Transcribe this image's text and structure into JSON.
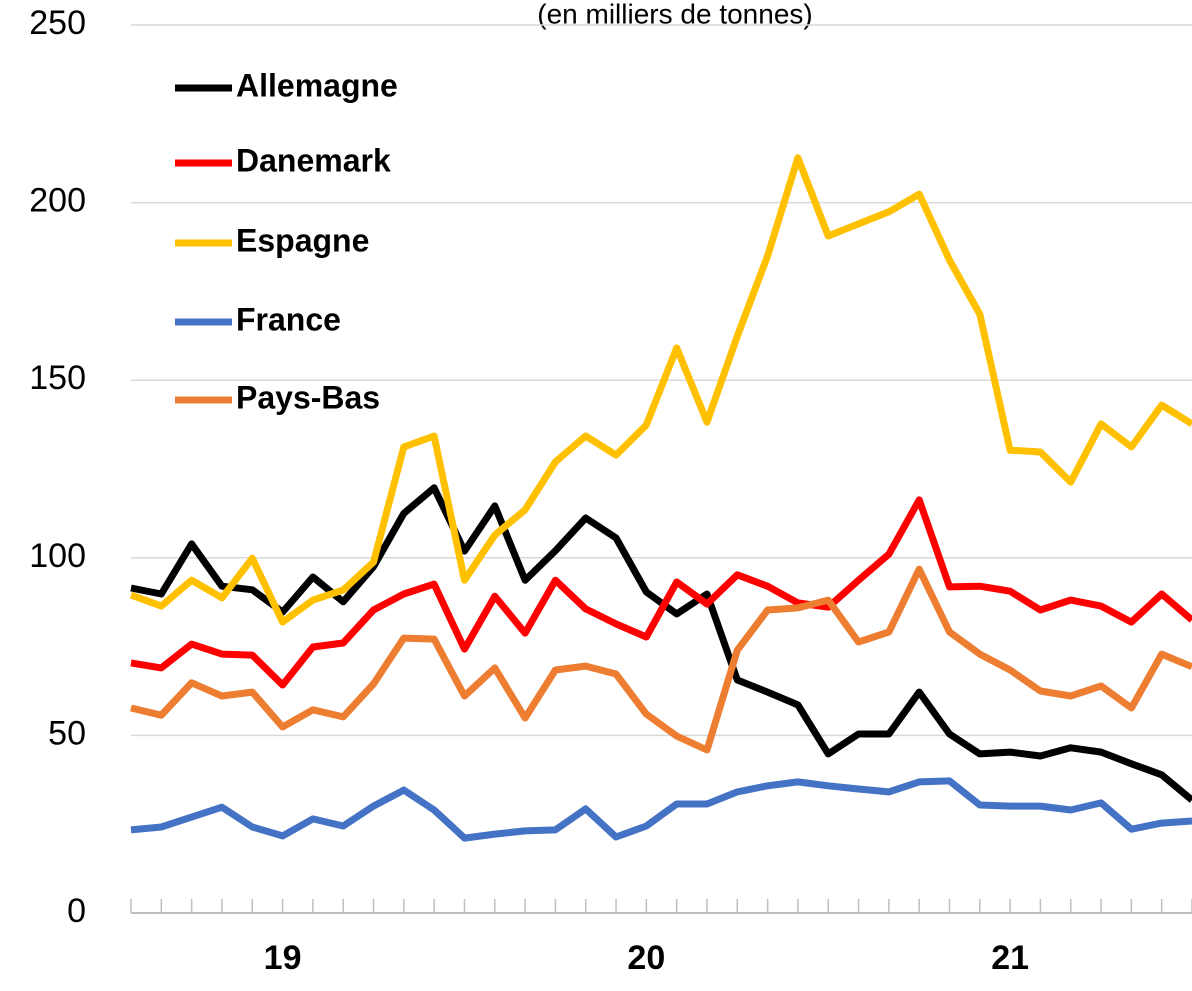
{
  "chart_data": {
    "type": "line",
    "title": "(en milliers de tonnes)",
    "categories": [
      null,
      null,
      null,
      null,
      null,
      "19",
      null,
      null,
      null,
      null,
      null,
      null,
      null,
      null,
      null,
      null,
      null,
      "20",
      null,
      null,
      null,
      null,
      null,
      null,
      null,
      null,
      null,
      null,
      null,
      "21",
      null,
      null,
      null,
      null,
      null,
      null
    ],
    "series": [
      {
        "name": "Allemagne",
        "color": "#000000",
        "values": [
          91.5,
          89.8,
          103.9,
          92,
          91,
          84.7,
          94.6,
          87.6,
          97.5,
          112.5,
          119.7,
          101.9,
          114.6,
          93.7,
          102,
          111.2,
          105.6,
          90.4,
          84.2,
          89.8,
          65.6,
          62.2,
          58.6,
          44.8,
          50.4,
          50.4,
          62.2,
          50.4,
          44.8,
          45.3,
          44.2,
          46.5,
          45.3,
          42,
          38.9,
          31.8
        ]
      },
      {
        "name": "Danemark",
        "color": "#ff0000",
        "values": [
          70.4,
          69,
          75.7,
          72.9,
          72.6,
          64.2,
          74.9,
          76,
          85.3,
          89.8,
          92.6,
          74.3,
          89.2,
          78.8,
          93.7,
          85.6,
          81.4,
          77.7,
          93.2,
          87,
          95.2,
          92,
          87.3,
          86.1,
          93.7,
          101,
          116.3,
          91.8,
          92,
          90.6,
          85.3,
          88.1,
          86.4,
          81.9,
          89.8,
          82.5
        ]
      },
      {
        "name": "Espagne",
        "color": "#ffc000",
        "values": [
          89.5,
          86.4,
          93.7,
          88.7,
          99.9,
          81.9,
          88.1,
          90.9,
          98.8,
          131.2,
          134.3,
          93.7,
          106.4,
          113.5,
          127,
          134.3,
          128.9,
          137.4,
          159.1,
          138.2,
          162.4,
          185,
          212.6,
          190.6,
          194,
          197.4,
          202.4,
          183.8,
          168.6,
          130.3,
          129.8,
          121.3,
          137.7,
          131.2,
          143,
          137.7
        ]
      },
      {
        "name": "France",
        "color": "#4472c4",
        "values": [
          23.4,
          24.2,
          27,
          29.8,
          24.2,
          21.7,
          26.5,
          24.5,
          30.1,
          34.6,
          29,
          21.1,
          22.2,
          23.1,
          23.4,
          29.3,
          21.4,
          24.5,
          30.7,
          30.7,
          34.1,
          35.8,
          36.9,
          35.8,
          34.9,
          34.1,
          36.9,
          37.2,
          30.4,
          30.1,
          30.1,
          29,
          31,
          23.6,
          25.3,
          25.9
        ]
      },
      {
        "name": "Pays-Bas",
        "color": "#ed7d31",
        "values": [
          57.7,
          55.7,
          64.8,
          61.1,
          62.2,
          52.4,
          57.2,
          55.2,
          64.5,
          77.4,
          77.1,
          61.1,
          69,
          54.9,
          68.4,
          69.5,
          67.3,
          56,
          49.8,
          45.9,
          74,
          85.3,
          85.9,
          88.1,
          76.3,
          79.1,
          96.8,
          79.1,
          72.9,
          68.4,
          62.5,
          61.1,
          63.9,
          57.7,
          72.9,
          69.3
        ]
      }
    ],
    "ylim": [
      0,
      250
    ],
    "yticks": [
      0,
      50,
      100,
      150,
      200,
      250
    ],
    "grid": true,
    "legend": "upper left"
  }
}
